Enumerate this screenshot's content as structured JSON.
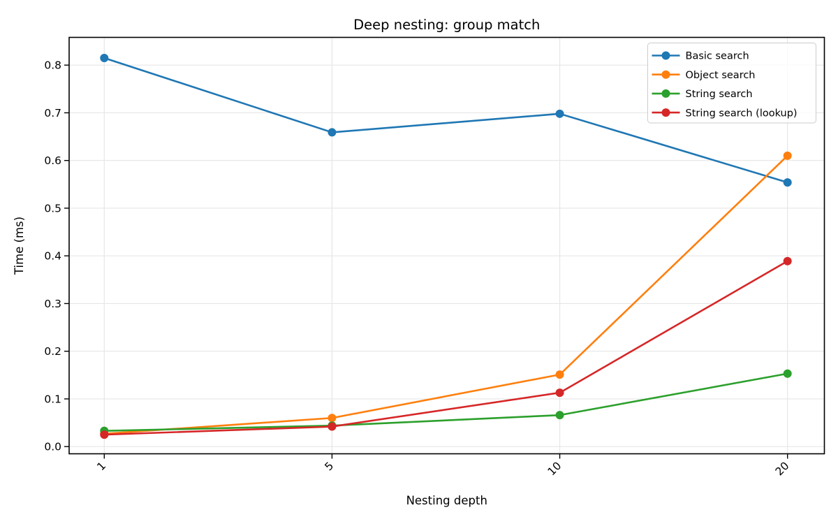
{
  "chart_data": {
    "type": "line",
    "title": "Deep nesting: group match",
    "xlabel": "Nesting depth",
    "ylabel": "Time (ms)",
    "categories": [
      "1",
      "5",
      "10",
      "20"
    ],
    "series": [
      {
        "name": "Basic search",
        "color": "#1f77b4",
        "values": [
          0.815,
          0.659,
          0.698,
          0.554
        ]
      },
      {
        "name": "Object search",
        "color": "#ff7f0e",
        "values": [
          0.027,
          0.06,
          0.151,
          0.61
        ]
      },
      {
        "name": "String search",
        "color": "#2ca02c",
        "values": [
          0.033,
          0.044,
          0.066,
          0.153
        ]
      },
      {
        "name": "String search (lookup)",
        "color": "#d62728",
        "values": [
          0.025,
          0.042,
          0.113,
          0.389
        ]
      }
    ],
    "yticks": [
      0.0,
      0.1,
      0.2,
      0.3,
      0.4,
      0.5,
      0.6,
      0.7,
      0.8
    ],
    "ytick_labels": [
      "0.0",
      "0.1",
      "0.2",
      "0.3",
      "0.4",
      "0.5",
      "0.6",
      "0.7",
      "0.8"
    ],
    "ylim": [
      -0.015,
      0.858
    ],
    "grid": true,
    "x_tick_rotation_deg": 45,
    "legend": {
      "position": "upper right"
    },
    "style": {
      "background": "#ffffff",
      "grid_color": "#e6e6e6",
      "spine_color": "#000000",
      "tick_color": "#000000",
      "legend_border": "#cccccc",
      "legend_fill": "#ffffff"
    }
  }
}
